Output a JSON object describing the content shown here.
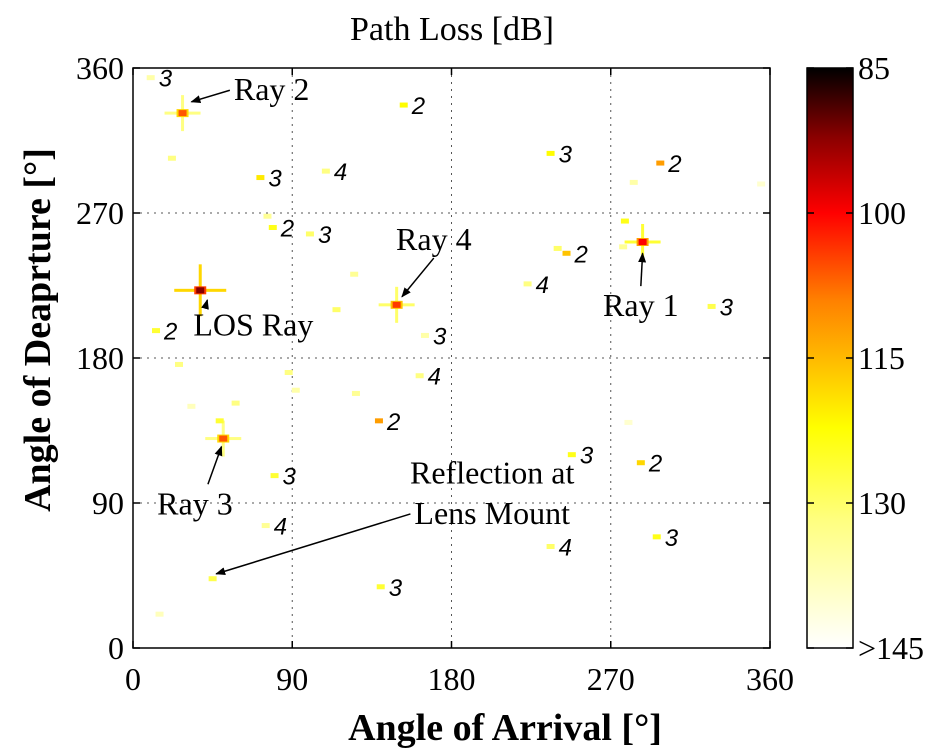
{
  "chart_data": {
    "type": "heatmap",
    "title": "Path Loss [dB]",
    "xlabel": "Angle of Arrival [°]",
    "ylabel": "Angle  of Deaprture [°]",
    "xlim": [
      0,
      360
    ],
    "ylim": [
      0,
      360
    ],
    "xticks": [
      "0",
      "90",
      "180",
      "270",
      "360"
    ],
    "yticks": [
      "0",
      "90",
      "180",
      "270",
      "360"
    ],
    "grid": true,
    "colorbar": {
      "min": 85,
      "max": 145,
      "tick_values": [
        85,
        100,
        115,
        130,
        145
      ],
      "tick_labels": [
        "85",
        "100",
        "115",
        "130",
        ">145"
      ],
      "colormap": "hot",
      "colors": [
        "#000000",
        "#8b0000",
        "#ff0000",
        "#ff8000",
        "#ffff00",
        "#ffffff"
      ]
    },
    "points": [
      {
        "aoa": 38,
        "aod": 222,
        "pathloss": 92,
        "label": ""
      },
      {
        "aoa": 288,
        "aod": 252,
        "pathloss": 100,
        "label": ""
      },
      {
        "aoa": 28,
        "aod": 332,
        "pathloss": 106,
        "label": ""
      },
      {
        "aoa": 51,
        "aod": 130,
        "pathloss": 106,
        "label": ""
      },
      {
        "aoa": 149,
        "aod": 213,
        "pathloss": 104,
        "label": ""
      },
      {
        "aoa": 45,
        "aod": 43,
        "pathloss": 128,
        "label": ""
      },
      {
        "aoa": 153,
        "aod": 337,
        "pathloss": 122,
        "label": "2"
      },
      {
        "aoa": 298,
        "aod": 301,
        "pathloss": 112,
        "label": "2"
      },
      {
        "aoa": 236,
        "aod": 307,
        "pathloss": 122,
        "label": "3"
      },
      {
        "aoa": 72,
        "aod": 292,
        "pathloss": 120,
        "label": "3"
      },
      {
        "aoa": 109,
        "aod": 296,
        "pathloss": 132,
        "label": "4"
      },
      {
        "aoa": 79,
        "aod": 261,
        "pathloss": 124,
        "label": "2"
      },
      {
        "aoa": 100,
        "aod": 257,
        "pathloss": 130,
        "label": "3"
      },
      {
        "aoa": 245,
        "aod": 245,
        "pathloss": 116,
        "label": "2"
      },
      {
        "aoa": 223,
        "aod": 226,
        "pathloss": 132,
        "label": "4"
      },
      {
        "aoa": 327,
        "aod": 212,
        "pathloss": 128,
        "label": "3"
      },
      {
        "aoa": 13,
        "aod": 197,
        "pathloss": 126,
        "label": "2"
      },
      {
        "aoa": 165,
        "aod": 194,
        "pathloss": 136,
        "label": "3"
      },
      {
        "aoa": 162,
        "aod": 169,
        "pathloss": 132,
        "label": "4"
      },
      {
        "aoa": 139,
        "aod": 141,
        "pathloss": 112,
        "label": "2"
      },
      {
        "aoa": 248,
        "aod": 120,
        "pathloss": 124,
        "label": "3"
      },
      {
        "aoa": 287,
        "aod": 115,
        "pathloss": 118,
        "label": "2"
      },
      {
        "aoa": 80,
        "aod": 107,
        "pathloss": 126,
        "label": "3"
      },
      {
        "aoa": 75,
        "aod": 76,
        "pathloss": 134,
        "label": "4"
      },
      {
        "aoa": 296,
        "aod": 69,
        "pathloss": 124,
        "label": "3"
      },
      {
        "aoa": 236,
        "aod": 63,
        "pathloss": 130,
        "label": "4"
      },
      {
        "aoa": 10,
        "aod": 354,
        "pathloss": 136,
        "label": "3"
      },
      {
        "aoa": 140,
        "aod": 38,
        "pathloss": 126,
        "label": "3"
      },
      {
        "aoa": 278,
        "aod": 265,
        "pathloss": 124,
        "label": ""
      },
      {
        "aoa": 22,
        "aod": 304,
        "pathloss": 132,
        "label": ""
      },
      {
        "aoa": 115,
        "aod": 210,
        "pathloss": 130,
        "label": ""
      },
      {
        "aoa": 49,
        "aod": 141,
        "pathloss": 126,
        "label": ""
      },
      {
        "aoa": 26,
        "aod": 176,
        "pathloss": 132,
        "label": ""
      },
      {
        "aoa": 125,
        "aod": 232,
        "pathloss": 134,
        "label": ""
      },
      {
        "aoa": 88,
        "aod": 171,
        "pathloss": 132,
        "label": ""
      },
      {
        "aoa": 58,
        "aod": 152,
        "pathloss": 132,
        "label": ""
      },
      {
        "aoa": 126,
        "aod": 158,
        "pathloss": 134,
        "label": ""
      },
      {
        "aoa": 283,
        "aod": 289,
        "pathloss": 136,
        "label": ""
      },
      {
        "aoa": 240,
        "aod": 248,
        "pathloss": 130,
        "label": ""
      },
      {
        "aoa": 277,
        "aod": 249,
        "pathloss": 134,
        "label": ""
      },
      {
        "aoa": 15,
        "aod": 21,
        "pathloss": 138,
        "label": ""
      },
      {
        "aoa": 355,
        "aod": 288,
        "pathloss": 140,
        "label": ""
      },
      {
        "aoa": 76,
        "aod": 268,
        "pathloss": 134,
        "label": ""
      },
      {
        "aoa": 33,
        "aod": 150,
        "pathloss": 138,
        "label": ""
      },
      {
        "aoa": 280,
        "aod": 140,
        "pathloss": 140,
        "label": ""
      },
      {
        "aoa": 92,
        "aod": 160,
        "pathloss": 136,
        "label": ""
      }
    ],
    "annotations": [
      {
        "text": "Ray 2",
        "x": 57,
        "y": 340,
        "anchor": "start",
        "target": [
          33,
          339
        ]
      },
      {
        "text": "Ray 4",
        "x": 170,
        "y": 247,
        "anchor": "middle",
        "target": [
          152,
          218
        ]
      },
      {
        "text": "Ray 1",
        "x": 287,
        "y": 206,
        "anchor": "middle",
        "target": [
          288,
          245
        ]
      },
      {
        "text": "LOS Ray",
        "x": 68,
        "y": 194,
        "anchor": "middle",
        "target": [
          42,
          216
        ]
      },
      {
        "text": "Ray 3",
        "x": 35,
        "y": 83,
        "anchor": "middle",
        "target": [
          50,
          125
        ]
      },
      {
        "text": "Reflection at",
        "x": 203,
        "y": 102,
        "anchor": "middle",
        "target": null
      },
      {
        "text": "Lens Mount",
        "x": 203,
        "y": 77,
        "anchor": "middle",
        "target": [
          47,
          46
        ]
      }
    ]
  }
}
